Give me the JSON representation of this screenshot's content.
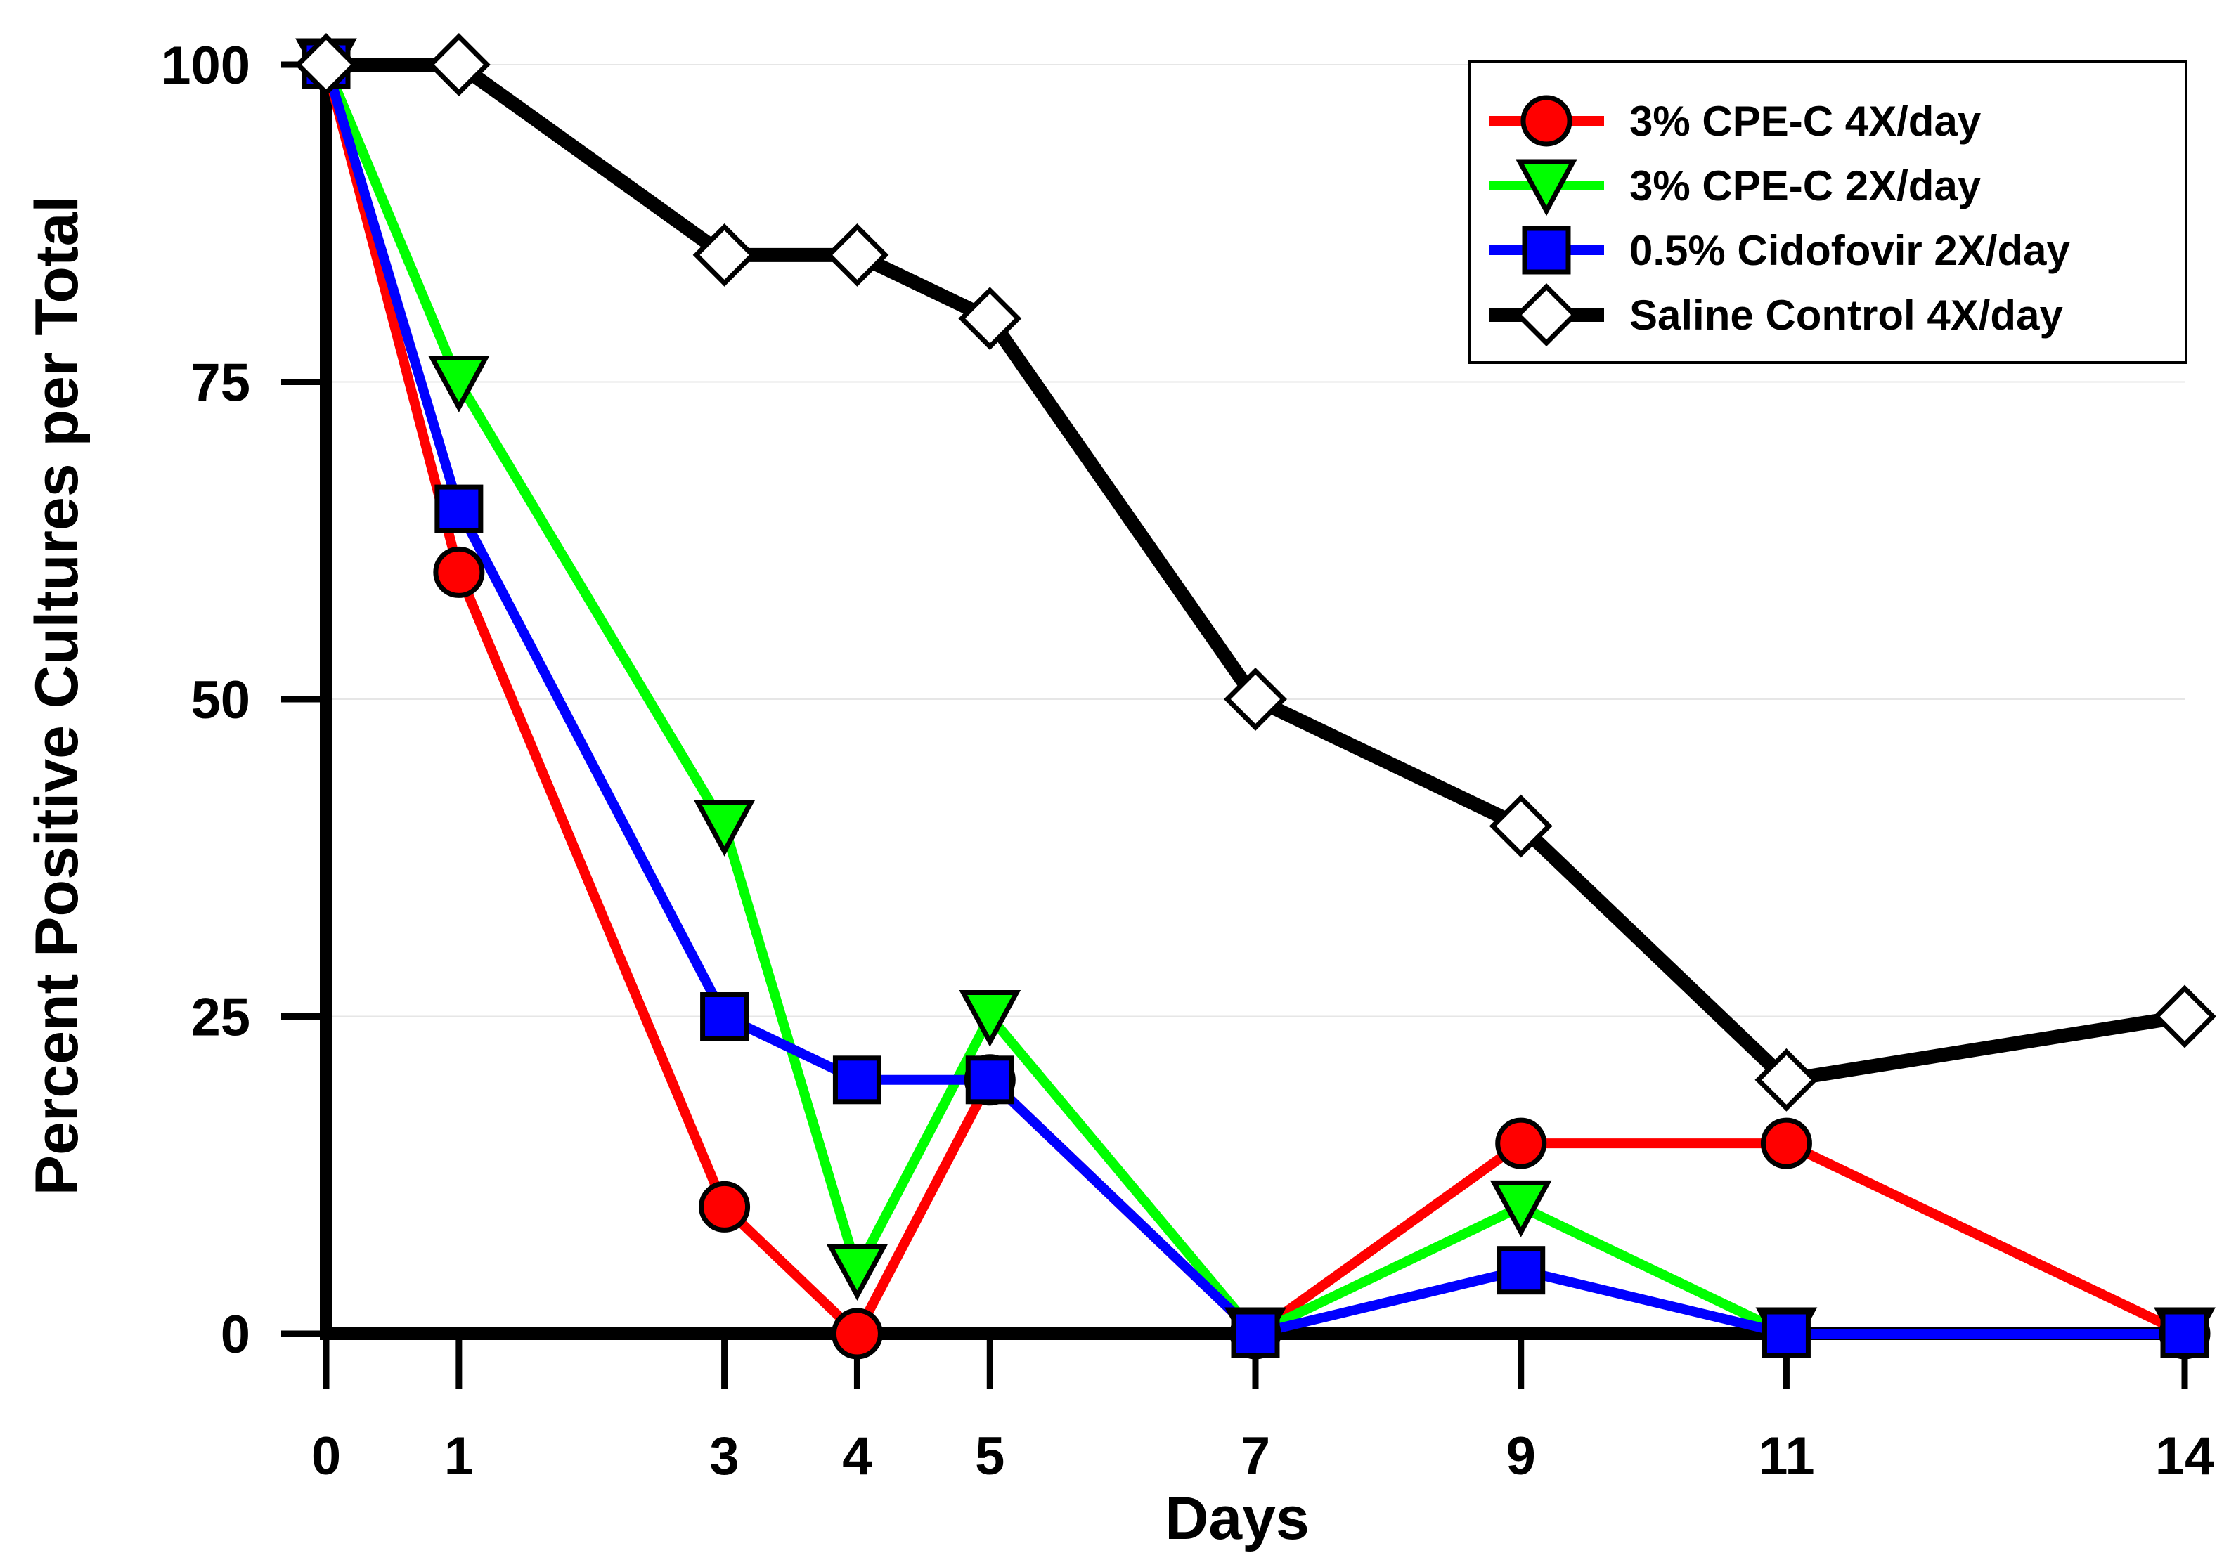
{
  "chart_data": {
    "type": "line",
    "title": "",
    "xlabel": "Days",
    "ylabel": "Percent Positive Cultures per Total",
    "x": [
      0,
      1,
      3,
      4,
      5,
      7,
      9,
      11,
      14
    ],
    "xticks": [
      "0",
      "1",
      "3",
      "4",
      "5",
      "7",
      "9",
      "11",
      "14"
    ],
    "yticks": [
      0,
      25,
      50,
      75,
      100
    ],
    "ytick_labels": [
      "0",
      "25",
      "50",
      "75",
      "100"
    ],
    "xlim": [
      0,
      14
    ],
    "ylim": [
      0,
      100
    ],
    "grid": "horizontal",
    "legend_position": "top-right",
    "series": [
      {
        "name": "3% CPE-C 4X/day",
        "color": "#ff0000",
        "marker": "circle",
        "values": [
          100,
          60,
          10,
          0,
          20,
          0,
          15,
          15,
          0
        ]
      },
      {
        "name": "3% CPE-C 2X/day",
        "color": "#00ff00",
        "marker": "triangle-down",
        "values": [
          100,
          75,
          40,
          5,
          25,
          0,
          10,
          0,
          0
        ]
      },
      {
        "name": "0.5% Cidofovir 2X/day",
        "color": "#0000ff",
        "marker": "square",
        "values": [
          100,
          65,
          25,
          20,
          20,
          0,
          5,
          0,
          0
        ]
      },
      {
        "name": "Saline Control 4X/day",
        "color": "#000000",
        "marker": "diamond",
        "values": [
          100,
          100,
          85,
          85,
          80,
          50,
          40,
          20,
          25
        ]
      }
    ]
  }
}
